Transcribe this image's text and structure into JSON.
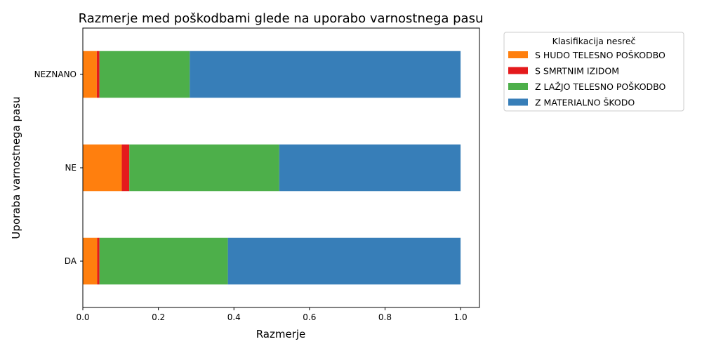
{
  "chart_data": {
    "type": "bar",
    "orientation": "horizontal",
    "stacked": true,
    "title": "Razmerje med poškodbami glede na uporabo varnostnega pasu",
    "xlabel": "Razmerje",
    "ylabel": "Uporaba varnostnega pasu",
    "xlim": [
      0,
      1.05
    ],
    "xticks": [
      "0.0",
      "0.2",
      "0.4",
      "0.6",
      "0.8",
      "1.0"
    ],
    "categories": [
      "DA",
      "NE",
      "NEZNANO"
    ],
    "series": [
      {
        "name": "S HUDO TELESNO POŠKODBO",
        "color": "#ff7f0e",
        "values": [
          0.038,
          0.103,
          0.037
        ]
      },
      {
        "name": "S SMRTNIM IZIDOM",
        "color": "#e41a1c",
        "values": [
          0.006,
          0.02,
          0.007
        ]
      },
      {
        "name": "Z LAŽJO TELESNO POŠKODBO",
        "color": "#4daf4a",
        "values": [
          0.34,
          0.397,
          0.239
        ]
      },
      {
        "name": "Z MATERIALNO ŠKODO",
        "color": "#377eb8",
        "values": [
          0.616,
          0.48,
          0.717
        ]
      }
    ],
    "legend": {
      "title": "Klasifikacija nesreč",
      "placement": "outside-right"
    },
    "grid": false
  }
}
